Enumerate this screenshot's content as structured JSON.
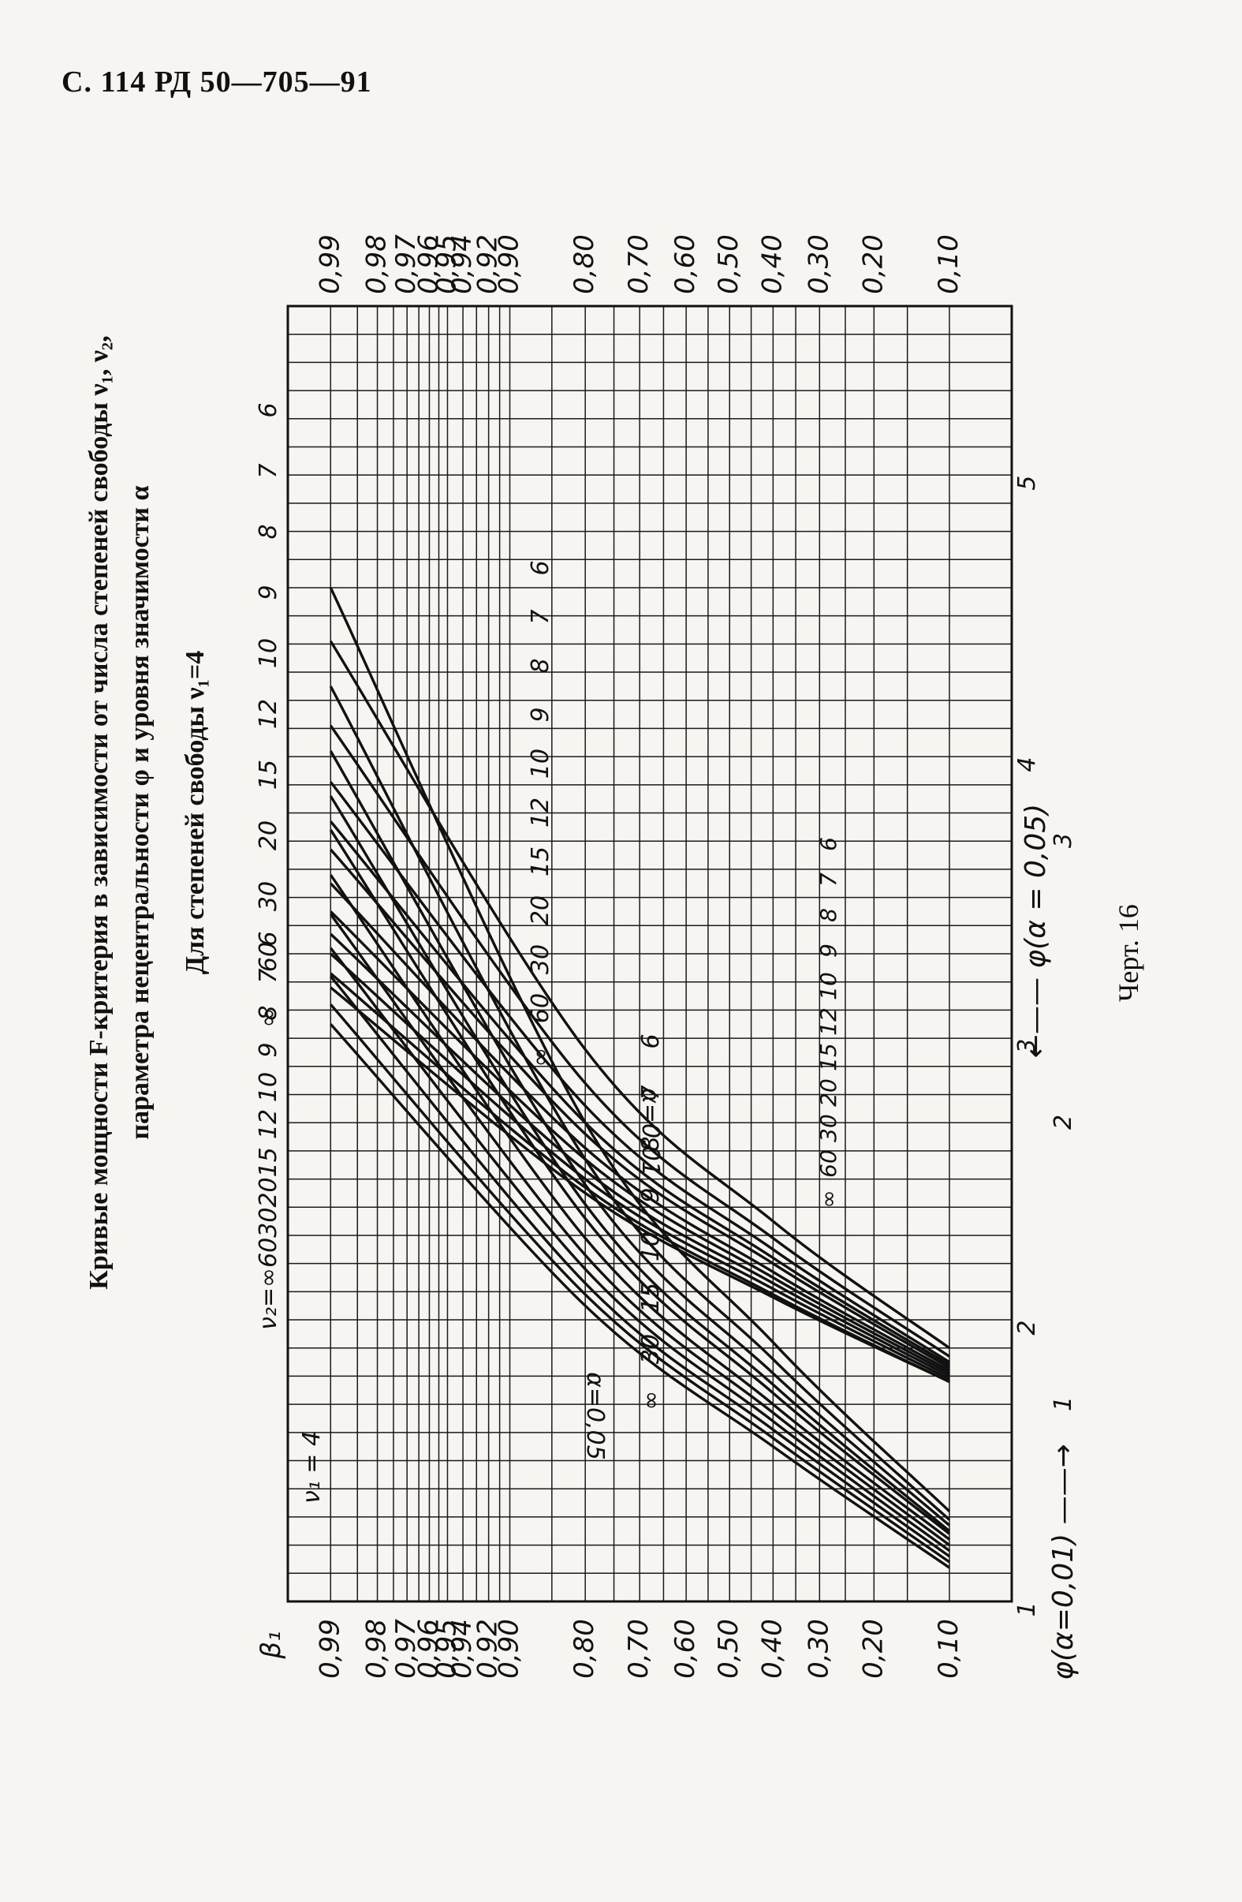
{
  "header": "С. 114 РД 50—705—91",
  "title": {
    "line1": "Кривые мощности F-критерия в зависимости от числа степеней свободы ν₁, ν₂,",
    "line2": "параметра нецентральности φ и уровня значимости α",
    "subtitle": "Для степеней свободы ν₁=4"
  },
  "caption": "Черт. 16",
  "chart_data": {
    "type": "line",
    "beta_axis_label": "β₁",
    "beta_ticks": [
      "0,99",
      "0,98",
      "0,97",
      "0,96",
      "0,95",
      "0,94",
      "0,92",
      "0,90",
      "0,80",
      "0,70",
      "0,60",
      "0,50",
      "0,40",
      "0,30",
      "0,20",
      "0,10"
    ],
    "beta_values": [
      0.99,
      0.98,
      0.97,
      0.96,
      0.95,
      0.94,
      0.92,
      0.9,
      0.8,
      0.7,
      0.6,
      0.5,
      0.4,
      0.3,
      0.2,
      0.1
    ],
    "phi_ticks_alpha_001": [
      "1",
      "2",
      "3",
      "4",
      "5"
    ],
    "phi_ticks_alpha_005": [
      "1",
      "2",
      "3"
    ],
    "phi_label_alpha_001": "φ(α=0,01)",
    "phi_label_alpha_005": "φ(α = 0,05)",
    "nu1_label": "ν₁ = 4",
    "nu2_prefix": "ν₂=",
    "nu2_top_001": [
      "∞",
      "60",
      "30",
      "20",
      "15",
      "12",
      "10",
      "9",
      "8",
      "7",
      "6"
    ],
    "nu2_top_005": [
      "∞",
      "60",
      "30",
      "20",
      "15",
      "12",
      "10",
      "9",
      "8",
      "7",
      "6"
    ],
    "alpha_labels": [
      "α=0,01",
      "α=0,05"
    ],
    "series_alpha_001": [
      {
        "name": "∞",
        "points": [
          [
            1.12,
            0.1
          ],
          [
            1.55,
            0.4
          ],
          [
            2.05,
            0.8
          ],
          [
            3.05,
            0.99
          ]
        ]
      },
      {
        "name": "60",
        "points": [
          [
            1.14,
            0.1
          ],
          [
            1.58,
            0.4
          ],
          [
            2.09,
            0.8
          ],
          [
            3.12,
            0.99
          ]
        ]
      },
      {
        "name": "30",
        "points": [
          [
            1.16,
            0.1
          ],
          [
            1.61,
            0.4
          ],
          [
            2.13,
            0.8
          ],
          [
            3.22,
            0.99
          ]
        ]
      },
      {
        "name": "20",
        "points": [
          [
            1.18,
            0.1
          ],
          [
            1.64,
            0.4
          ],
          [
            2.18,
            0.8
          ],
          [
            3.32,
            0.99
          ]
        ]
      },
      {
        "name": "15",
        "points": [
          [
            1.2,
            0.1
          ],
          [
            1.67,
            0.4
          ],
          [
            2.23,
            0.8
          ],
          [
            3.44,
            0.99
          ]
        ]
      },
      {
        "name": "12",
        "points": [
          [
            1.22,
            0.1
          ],
          [
            1.7,
            0.4
          ],
          [
            2.29,
            0.8
          ],
          [
            3.58,
            0.99
          ]
        ]
      },
      {
        "name": "10",
        "points": [
          [
            1.24,
            0.1
          ],
          [
            1.74,
            0.4
          ],
          [
            2.36,
            0.8
          ],
          [
            3.74,
            0.99
          ]
        ]
      },
      {
        "name": "9",
        "points": [
          [
            1.25,
            0.1
          ],
          [
            1.77,
            0.4
          ],
          [
            2.41,
            0.8
          ],
          [
            3.86,
            0.99
          ]
        ]
      },
      {
        "name": "8",
        "points": [
          [
            1.27,
            0.1
          ],
          [
            1.81,
            0.4
          ],
          [
            2.48,
            0.8
          ],
          [
            4.02,
            0.99
          ]
        ]
      },
      {
        "name": "7",
        "points": [
          [
            1.29,
            0.1
          ],
          [
            1.86,
            0.4
          ],
          [
            2.57,
            0.8
          ],
          [
            4.25,
            0.99
          ]
        ]
      },
      {
        "name": "6",
        "points": [
          [
            1.32,
            0.1
          ],
          [
            1.92,
            0.4
          ],
          [
            2.7,
            0.8
          ],
          [
            4.6,
            0.99
          ]
        ]
      }
    ],
    "series_alpha_005": [
      {
        "name": "∞",
        "points": [
          [
            1.05,
            0.1
          ],
          [
            1.35,
            0.4
          ],
          [
            1.72,
            0.8
          ],
          [
            2.45,
            0.99
          ]
        ]
      },
      {
        "name": "60",
        "points": [
          [
            1.05,
            0.1
          ],
          [
            1.36,
            0.4
          ],
          [
            1.74,
            0.8
          ],
          [
            2.5,
            0.99
          ]
        ]
      },
      {
        "name": "30",
        "points": [
          [
            1.06,
            0.1
          ],
          [
            1.38,
            0.4
          ],
          [
            1.77,
            0.8
          ],
          [
            2.57,
            0.99
          ]
        ]
      },
      {
        "name": "20",
        "points": [
          [
            1.07,
            0.1
          ],
          [
            1.4,
            0.4
          ],
          [
            1.8,
            0.8
          ],
          [
            2.64,
            0.99
          ]
        ]
      },
      {
        "name": "15",
        "points": [
          [
            1.08,
            0.1
          ],
          [
            1.42,
            0.4
          ],
          [
            1.84,
            0.8
          ],
          [
            2.72,
            0.99
          ]
        ]
      },
      {
        "name": "12",
        "points": [
          [
            1.09,
            0.1
          ],
          [
            1.44,
            0.4
          ],
          [
            1.88,
            0.8
          ],
          [
            2.82,
            0.99
          ]
        ]
      },
      {
        "name": "10",
        "points": [
          [
            1.1,
            0.1
          ],
          [
            1.47,
            0.4
          ],
          [
            1.93,
            0.8
          ],
          [
            2.94,
            0.99
          ]
        ]
      },
      {
        "name": "9",
        "points": [
          [
            1.11,
            0.1
          ],
          [
            1.49,
            0.4
          ],
          [
            1.97,
            0.8
          ],
          [
            3.04,
            0.99
          ]
        ]
      },
      {
        "name": "8",
        "points": [
          [
            1.12,
            0.1
          ],
          [
            1.52,
            0.4
          ],
          [
            2.03,
            0.8
          ],
          [
            3.18,
            0.99
          ]
        ]
      },
      {
        "name": "7",
        "points": [
          [
            1.14,
            0.1
          ],
          [
            1.56,
            0.4
          ],
          [
            2.11,
            0.8
          ],
          [
            3.38,
            0.99
          ]
        ]
      },
      {
        "name": "6",
        "points": [
          [
            1.17,
            0.1
          ],
          [
            1.62,
            0.4
          ],
          [
            2.23,
            0.8
          ],
          [
            3.68,
            0.99
          ]
        ]
      }
    ],
    "inline_labels_001": [
      "∞",
      "30",
      "15",
      "10",
      "9",
      "8",
      "7",
      "6"
    ],
    "inline_labels_005": [
      "∞",
      "60",
      "30",
      "20",
      "15",
      "12",
      "10",
      "9",
      "8",
      "7",
      "6"
    ],
    "inline_labels_005b": [
      "∞",
      "60",
      "30",
      "20",
      "15",
      "12",
      "10",
      "9",
      "8",
      "7",
      "6"
    ]
  }
}
